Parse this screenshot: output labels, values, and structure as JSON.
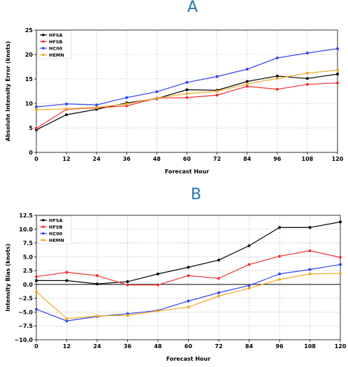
{
  "panels": [
    {
      "letter": "A"
    },
    {
      "letter": "B"
    }
  ],
  "colors": {
    "HFSA": "#000000",
    "HFSB": "#ee3333",
    "HC00": "#3344ee",
    "HEMN": "#f0a824"
  },
  "chart_data": [
    {
      "type": "line",
      "title": "A",
      "xlabel": "Forecast Hour",
      "ylabel": "Absolute Intensity Error (knots)",
      "x": [
        0,
        12,
        24,
        36,
        48,
        60,
        72,
        84,
        96,
        108,
        120
      ],
      "xlim": [
        0,
        120
      ],
      "ylim": [
        0,
        25
      ],
      "xticks": [
        "0",
        "12",
        "24",
        "36",
        "48",
        "60",
        "72",
        "84",
        "96",
        "108",
        "120"
      ],
      "yticks": [
        "0",
        "5",
        "10",
        "15",
        "20",
        "25"
      ],
      "grid": true,
      "legend_position": "top-left",
      "series": [
        {
          "name": "HFSA",
          "values": [
            4.6,
            7.7,
            8.8,
            10.1,
            11.0,
            12.8,
            12.7,
            14.5,
            15.6,
            15.1,
            16.0
          ]
        },
        {
          "name": "HFSB",
          "values": [
            4.9,
            8.8,
            9.1,
            9.5,
            11.1,
            11.2,
            11.7,
            13.5,
            12.9,
            13.9,
            14.2
          ]
        },
        {
          "name": "HC00",
          "values": [
            9.3,
            9.9,
            9.7,
            11.2,
            12.4,
            14.3,
            15.5,
            17.0,
            19.3,
            20.3,
            21.2
          ]
        },
        {
          "name": "HEMN",
          "values": [
            8.7,
            8.9,
            9.2,
            9.9,
            11.1,
            12.0,
            12.5,
            14.0,
            15.1,
            16.2,
            16.8
          ]
        }
      ]
    },
    {
      "type": "line",
      "title": "B",
      "xlabel": "Forecast Hour",
      "ylabel": "Intensity Bias (knots)",
      "x": [
        0,
        12,
        24,
        36,
        48,
        60,
        72,
        84,
        96,
        108,
        120
      ],
      "xlim": [
        0,
        120
      ],
      "ylim": [
        -10,
        12.5
      ],
      "xticks": [
        "0",
        "12",
        "24",
        "36",
        "48",
        "60",
        "72",
        "84",
        "96",
        "108",
        "120"
      ],
      "yticks": [
        "−10.0",
        "−7.5",
        "−5.0",
        "−2.5",
        "0.0",
        "2.5",
        "5.0",
        "7.5",
        "10.0",
        "12.5"
      ],
      "grid": true,
      "zero_line": true,
      "legend_position": "top-left",
      "series": [
        {
          "name": "HFSA",
          "values": [
            0.7,
            0.7,
            0.1,
            0.5,
            1.9,
            3.1,
            4.4,
            7.0,
            10.3,
            10.3,
            11.3
          ]
        },
        {
          "name": "HFSB",
          "values": [
            1.4,
            2.2,
            1.6,
            -0.1,
            -0.1,
            1.6,
            1.1,
            3.6,
            5.1,
            6.1,
            4.9
          ]
        },
        {
          "name": "HC00",
          "values": [
            -4.5,
            -6.6,
            -5.8,
            -5.3,
            -4.7,
            -3.0,
            -1.5,
            -0.2,
            1.9,
            2.7,
            3.6
          ]
        },
        {
          "name": "HEMN",
          "values": [
            -1.3,
            -6.2,
            -5.7,
            -5.6,
            -4.8,
            -4.1,
            -2.1,
            -0.7,
            0.9,
            1.9,
            2.0
          ]
        }
      ]
    }
  ]
}
